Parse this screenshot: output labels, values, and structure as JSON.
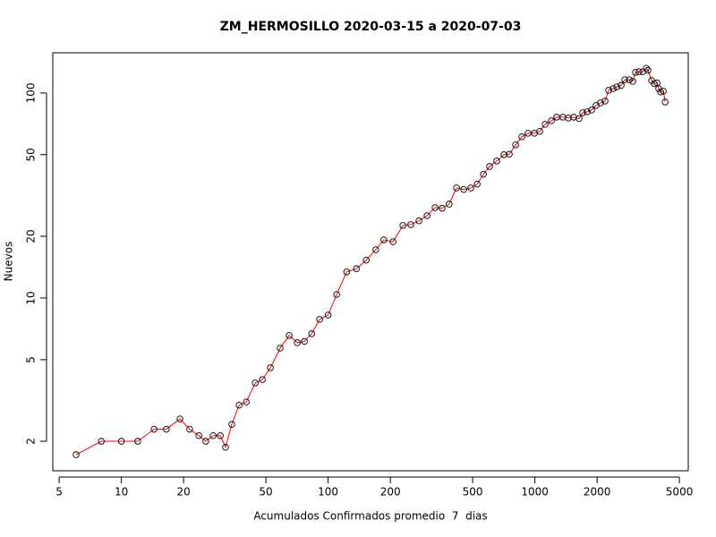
{
  "chart_data": {
    "type": "line",
    "title": "ZM_HERMOSILLO 2020-03-15 a 2020-07-03",
    "x_label": "Acumulados Confirmados promedio  7  dias",
    "y_label": "Nuevos",
    "x": [
      6.04,
      8,
      10,
      12,
      14.4,
      16.5,
      19.2,
      21.4,
      23.7,
      25.6,
      27.8,
      30.1,
      31.9,
      34.2,
      37.1,
      40.2,
      44.4,
      48.1,
      52.6,
      58.6,
      64.8,
      70.9,
      76.8,
      83.2,
      91,
      100,
      110,
      123,
      137,
      153,
      170,
      186,
      206,
      230,
      251,
      275,
      301,
      329,
      356,
      385,
      418,
      453,
      490,
      526,
      564,
      604,
      654,
      709,
      752,
      807,
      865,
      927,
      995,
      1056,
      1121,
      1202,
      1276,
      1367,
      1451,
      1541,
      1636,
      1703,
      1790,
      1882,
      1978,
      2079,
      2186,
      2274,
      2391,
      2487,
      2615,
      2721,
      2860,
      2975,
      3068,
      3191,
      3326,
      3460,
      3525,
      3670,
      3785,
      3900,
      3970,
      4055,
      4180,
      4266
    ],
    "values": [
      1.72,
      2,
      2,
      2,
      2.29,
      2.29,
      2.57,
      2.29,
      2.13,
      2,
      2.13,
      2.13,
      1.87,
      2.42,
      3,
      3.11,
      3.85,
      4,
      4.57,
      5.69,
      6.56,
      6.05,
      6.14,
      6.69,
      7.86,
      8.26,
      10.4,
      13.4,
      13.9,
      15.3,
      17.2,
      19.2,
      18.8,
      22.6,
      22.8,
      23.8,
      25.2,
      27.6,
      27.4,
      28.7,
      34.4,
      33.8,
      34.4,
      35.9,
      40.1,
      43.8,
      46.6,
      50,
      50.3,
      55.8,
      61.1,
      63.6,
      63.6,
      65,
      70.3,
      73.2,
      76.2,
      76.2,
      75.5,
      76.2,
      75,
      80.1,
      81,
      82.6,
      86.9,
      89.5,
      91.3,
      103,
      105,
      107,
      109,
      116,
      116,
      114,
      126,
      127,
      127,
      132,
      129,
      115,
      111,
      112,
      105,
      101,
      102,
      90.4
    ],
    "color": "#ff0000",
    "marker_color": "#000000",
    "log_x": true,
    "log_y": true,
    "xlim": [
      4.66,
      5520
    ],
    "ylim": [
      1.436,
      157
    ],
    "xticks": [
      5,
      10,
      20,
      50,
      100,
      200,
      500,
      1000,
      2000,
      5000
    ],
    "yticks": [
      2,
      5,
      10,
      20,
      50,
      100
    ]
  }
}
